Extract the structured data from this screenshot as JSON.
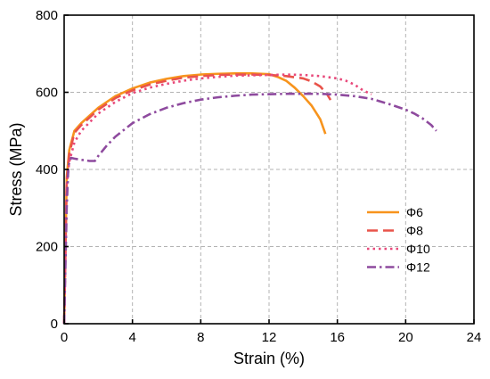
{
  "chart_data": {
    "type": "line",
    "title": "",
    "xlabel": "Strain (%)",
    "ylabel": "Stress (MPa)",
    "xlim": [
      0,
      24
    ],
    "ylim": [
      0,
      800
    ],
    "xticks": [
      0,
      4,
      8,
      12,
      16,
      20,
      24
    ],
    "yticks": [
      0,
      200,
      400,
      600,
      800
    ],
    "grid": true,
    "legend_position": "right",
    "series": [
      {
        "name": "Φ6",
        "color": "#F7941D",
        "dash": "solid",
        "x": [
          0,
          0.15,
          0.3,
          0.6,
          1,
          2,
          3,
          4,
          5,
          6,
          7,
          8,
          9,
          10,
          11,
          12,
          12.5,
          13,
          13.5,
          14,
          14.5,
          15,
          15.3
        ],
        "y": [
          0,
          380,
          450,
          500,
          520,
          560,
          590,
          610,
          625,
          635,
          642,
          646,
          648,
          649,
          649,
          647,
          640,
          630,
          612,
          590,
          565,
          530,
          492
        ]
      },
      {
        "name": "Φ8",
        "color": "#E9534A",
        "dash": "longdash",
        "x": [
          0,
          0.15,
          0.3,
          0.6,
          1,
          2,
          3,
          4,
          5,
          6,
          7,
          8,
          9,
          10,
          11,
          12,
          13,
          14,
          14.5,
          15,
          15.4,
          15.6
        ],
        "y": [
          0,
          370,
          440,
          495,
          515,
          555,
          585,
          605,
          620,
          630,
          638,
          642,
          645,
          646,
          646,
          645,
          642,
          636,
          628,
          615,
          595,
          580
        ]
      },
      {
        "name": "Φ10",
        "color": "#E8487A",
        "dash": "dot",
        "x": [
          0,
          0.15,
          0.3,
          0.6,
          1,
          2,
          3,
          4,
          5,
          6,
          7,
          8,
          9,
          10,
          11,
          12,
          13,
          14,
          15,
          16,
          16.5,
          17,
          17.5,
          18
        ],
        "y": [
          0,
          360,
          420,
          470,
          500,
          545,
          575,
          598,
          612,
          622,
          630,
          636,
          640,
          643,
          644,
          645,
          646,
          645,
          642,
          636,
          630,
          620,
          605,
          595
        ]
      },
      {
        "name": "Φ12",
        "color": "#8E4A9E",
        "dash": "dashdot",
        "x": [
          0,
          0.15,
          0.25,
          0.4,
          0.6,
          1,
          1.5,
          1.8,
          2,
          2.5,
          3,
          4,
          5,
          6,
          7,
          8,
          9,
          10,
          11,
          12,
          13,
          14,
          15,
          16,
          17,
          18,
          19,
          20,
          20.5,
          21,
          21.5,
          21.8
        ],
        "y": [
          0,
          300,
          410,
          430,
          428,
          425,
          422,
          422,
          435,
          462,
          485,
          520,
          543,
          560,
          572,
          581,
          587,
          591,
          594,
          595,
          596,
          596,
          596,
          594,
          590,
          583,
          570,
          555,
          545,
          532,
          515,
          500
        ]
      }
    ]
  }
}
